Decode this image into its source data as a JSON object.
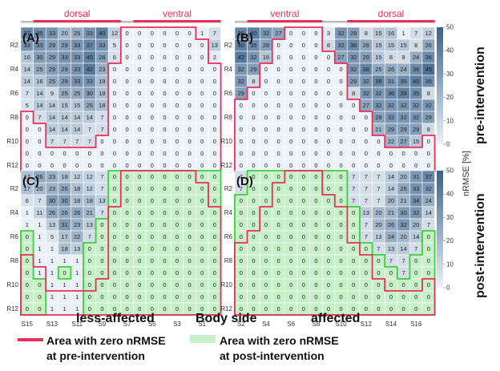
{
  "chart_data": {
    "type": "heatmap",
    "colorbar": {
      "label": "nRMSE [%]",
      "range": [
        0,
        50
      ],
      "ticks": [
        "0",
        "10",
        "20",
        "30",
        "40",
        "50"
      ]
    },
    "row_labels": [
      "R2",
      "R4",
      "R6",
      "R8",
      "R10",
      "R12"
    ],
    "row_count": 12,
    "side_labels": {
      "left": "less-affected",
      "center": "Body side",
      "right": "affected"
    },
    "row_titles": {
      "top": "pre-intervention",
      "bottom": "post-intervention"
    },
    "legend": {
      "pre_line1": "Area with zero nRMSE",
      "pre_line2": "at pre-intervention",
      "post_line1": "Area with zero nRMSE",
      "post_line2": "at post-intervention",
      "pre_color": "#e8305a",
      "post_color": "#c8f0c8"
    },
    "panels": [
      {
        "id": "A",
        "label": "(A)",
        "col_labels": [
          "S15",
          "S13",
          "S11",
          "S9",
          "S7",
          "S5",
          "S3",
          "S1"
        ],
        "regions": [
          {
            "label": "dorsal",
            "from": 1,
            "to": 7
          },
          {
            "label": "ventral",
            "from": 9,
            "to": 15
          }
        ],
        "values": [
          [
            37,
            35,
            33,
            20,
            25,
            33,
            40,
            12,
            0,
            0,
            0,
            0,
            0,
            0,
            1,
            7
          ],
          [
            33,
            33,
            29,
            29,
            33,
            37,
            33,
            5,
            0,
            0,
            0,
            0,
            0,
            0,
            0,
            13
          ],
          [
            16,
            30,
            29,
            33,
            33,
            40,
            28,
            6,
            0,
            0,
            0,
            0,
            0,
            0,
            0,
            2
          ],
          [
            14,
            25,
            29,
            29,
            33,
            42,
            23,
            0,
            0,
            0,
            0,
            0,
            0,
            0,
            0,
            0
          ],
          [
            14,
            16,
            25,
            29,
            33,
            33,
            19,
            0,
            0,
            0,
            0,
            0,
            0,
            0,
            0,
            0
          ],
          [
            7,
            14,
            9,
            25,
            25,
            30,
            18,
            0,
            0,
            0,
            0,
            0,
            0,
            0,
            0,
            0
          ],
          [
            5,
            14,
            14,
            15,
            15,
            25,
            18,
            0,
            0,
            0,
            0,
            0,
            0,
            0,
            0,
            0
          ],
          [
            0,
            7,
            14,
            14,
            14,
            14,
            7,
            0,
            0,
            0,
            0,
            0,
            0,
            0,
            0,
            0
          ],
          [
            0,
            0,
            14,
            14,
            14,
            7,
            7,
            0,
            0,
            0,
            0,
            0,
            0,
            0,
            0,
            0
          ],
          [
            0,
            0,
            7,
            7,
            7,
            7,
            0,
            0,
            0,
            0,
            0,
            0,
            0,
            0,
            0,
            0
          ],
          [
            0,
            0,
            0,
            0,
            0,
            0,
            0,
            0,
            0,
            0,
            0,
            0,
            0,
            0,
            0,
            0
          ],
          [
            0,
            0,
            0,
            0,
            0,
            0,
            0,
            0,
            0,
            0,
            0,
            0,
            0,
            0,
            0,
            0
          ]
        ]
      },
      {
        "id": "B",
        "label": "(B)",
        "col_labels": [
          "S2",
          "S4",
          "S6",
          "S8",
          "S10",
          "S12",
          "S14",
          "S16"
        ],
        "regions": [
          {
            "label": "ventral",
            "from": 1,
            "to": 6
          },
          {
            "label": "dorsal",
            "from": 9,
            "to": 15
          }
        ],
        "values": [
          [
            38,
            40,
            32,
            27,
            0,
            0,
            0,
            3,
            32,
            29,
            8,
            15,
            16,
            1,
            7,
            12
          ],
          [
            40,
            35,
            28,
            0,
            0,
            0,
            0,
            8,
            32,
            36,
            26,
            15,
            15,
            15,
            8,
            26
          ],
          [
            42,
            32,
            16,
            0,
            0,
            0,
            0,
            0,
            27,
            32,
            29,
            15,
            8,
            8,
            24,
            36
          ],
          [
            32,
            29,
            0,
            0,
            0,
            0,
            0,
            0,
            0,
            32,
            38,
            25,
            26,
            24,
            36,
            45
          ],
          [
            32,
            8,
            0,
            0,
            0,
            0,
            0,
            0,
            0,
            29,
            32,
            38,
            31,
            35,
            40,
            35
          ],
          [
            29,
            0,
            0,
            0,
            0,
            0,
            0,
            0,
            0,
            8,
            32,
            32,
            36,
            39,
            35,
            8
          ],
          [
            0,
            0,
            0,
            0,
            0,
            0,
            0,
            0,
            0,
            0,
            27,
            32,
            32,
            32,
            32,
            32
          ],
          [
            0,
            0,
            0,
            0,
            0,
            0,
            0,
            0,
            0,
            0,
            0,
            29,
            32,
            32,
            32,
            29
          ],
          [
            0,
            0,
            0,
            0,
            0,
            0,
            0,
            0,
            0,
            0,
            0,
            21,
            29,
            29,
            29,
            8
          ],
          [
            0,
            0,
            0,
            0,
            0,
            0,
            0,
            0,
            0,
            0,
            0,
            0,
            22,
            27,
            15,
            0
          ],
          [
            0,
            0,
            0,
            0,
            0,
            0,
            0,
            0,
            0,
            0,
            0,
            0,
            0,
            0,
            0,
            0
          ],
          [
            0,
            0,
            0,
            0,
            0,
            0,
            0,
            0,
            0,
            0,
            0,
            0,
            0,
            0,
            0,
            0
          ]
        ]
      },
      {
        "id": "C",
        "label": "(C)",
        "col_labels": [
          "S15",
          "S13",
          "S11",
          "S9",
          "S7",
          "S5",
          "S3",
          "S1"
        ],
        "values": [
          [
            17,
            26,
            23,
            18,
            12,
            12,
            7,
            0,
            0,
            0,
            0,
            0,
            0,
            0,
            0,
            0
          ],
          [
            17,
            20,
            23,
            26,
            18,
            12,
            7,
            0,
            0,
            0,
            0,
            0,
            0,
            0,
            0,
            0
          ],
          [
            6,
            7,
            30,
            30,
            18,
            18,
            13,
            0,
            0,
            0,
            0,
            0,
            0,
            0,
            0,
            0
          ],
          [
            1,
            11,
            26,
            26,
            26,
            21,
            7,
            0,
            0,
            0,
            0,
            0,
            0,
            0,
            0,
            0
          ],
          [
            1,
            1,
            13,
            31,
            23,
            13,
            0,
            0,
            0,
            0,
            0,
            0,
            0,
            0,
            0,
            0
          ],
          [
            0,
            1,
            5,
            17,
            22,
            7,
            0,
            0,
            0,
            0,
            0,
            0,
            0,
            0,
            0,
            0
          ],
          [
            0,
            1,
            1,
            18,
            13,
            0,
            0,
            0,
            0,
            0,
            0,
            0,
            0,
            0,
            0,
            0
          ],
          [
            0,
            1,
            1,
            1,
            1,
            0,
            0,
            0,
            0,
            0,
            0,
            0,
            0,
            0,
            0,
            0
          ],
          [
            0,
            1,
            1,
            0,
            1,
            0,
            0,
            0,
            0,
            0,
            0,
            0,
            0,
            0,
            0,
            0
          ],
          [
            0,
            0,
            1,
            1,
            1,
            0,
            0,
            0,
            0,
            0,
            0,
            0,
            0,
            0,
            0,
            0
          ],
          [
            0,
            0,
            1,
            1,
            1,
            0,
            0,
            0,
            0,
            0,
            0,
            0,
            0,
            0,
            0,
            0
          ],
          [
            0,
            0,
            1,
            1,
            1,
            0,
            0,
            0,
            0,
            0,
            0,
            0,
            0,
            0,
            0,
            0
          ]
        ]
      },
      {
        "id": "D",
        "label": "(D)",
        "col_labels": [
          "S2",
          "S4",
          "S6",
          "S8",
          "S10",
          "S12",
          "S14",
          "S16"
        ],
        "values": [
          [
            7,
            0,
            0,
            0,
            0,
            0,
            0,
            0,
            0,
            7,
            7,
            7,
            14,
            20,
            31,
            37
          ],
          [
            7,
            0,
            0,
            0,
            0,
            0,
            0,
            0,
            0,
            7,
            7,
            7,
            14,
            26,
            33,
            32
          ],
          [
            0,
            0,
            0,
            0,
            0,
            0,
            0,
            0,
            0,
            7,
            7,
            7,
            20,
            21,
            34,
            24
          ],
          [
            0,
            0,
            0,
            0,
            0,
            0,
            0,
            0,
            0,
            0,
            13,
            20,
            21,
            30,
            32,
            14
          ],
          [
            0,
            0,
            0,
            0,
            0,
            0,
            0,
            0,
            0,
            0,
            7,
            20,
            26,
            32,
            20,
            7
          ],
          [
            0,
            0,
            0,
            0,
            0,
            0,
            0,
            0,
            0,
            0,
            7,
            13,
            24,
            20,
            14,
            0
          ],
          [
            0,
            0,
            0,
            0,
            0,
            0,
            0,
            0,
            0,
            0,
            0,
            7,
            13,
            14,
            7,
            0
          ],
          [
            0,
            0,
            0,
            0,
            0,
            0,
            0,
            0,
            0,
            0,
            0,
            0,
            7,
            7,
            0,
            0
          ],
          [
            0,
            0,
            0,
            0,
            0,
            0,
            0,
            0,
            0,
            0,
            0,
            0,
            0,
            7,
            0,
            0
          ],
          [
            0,
            0,
            0,
            0,
            0,
            0,
            0,
            0,
            0,
            0,
            0,
            0,
            0,
            0,
            0,
            0
          ],
          [
            0,
            0,
            0,
            0,
            0,
            0,
            0,
            0,
            0,
            0,
            0,
            0,
            0,
            0,
            0,
            0
          ],
          [
            0,
            0,
            0,
            0,
            0,
            0,
            0,
            0,
            0,
            0,
            0,
            0,
            0,
            0,
            0,
            0
          ]
        ]
      }
    ]
  }
}
